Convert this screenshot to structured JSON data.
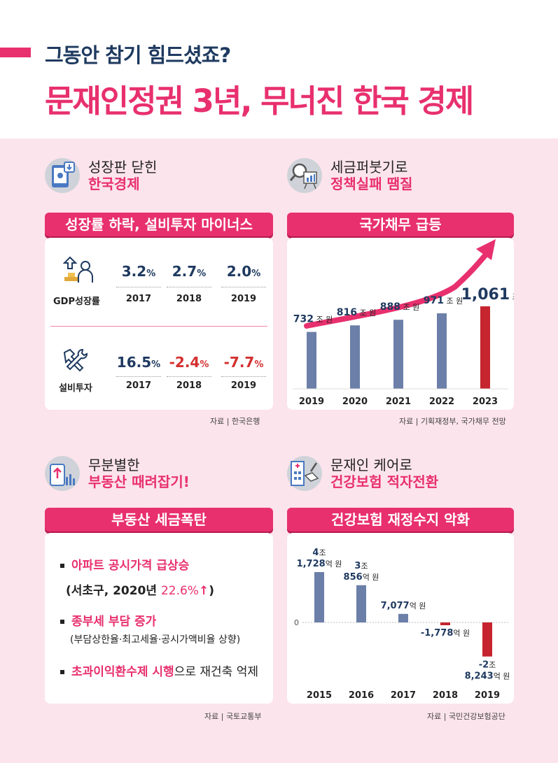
{
  "header": {
    "subtitle": "그동안 참기 힘드셨죠?",
    "title": "문재인정권 3년, 무너진 한국 경제"
  },
  "sections": [
    {
      "line1": "성장판 닫힌",
      "line2": "한국경제",
      "banner": "성장률 하락, 설비투자 마이너스",
      "source": "자료 | 한국은행"
    },
    {
      "line1": "세금퍼붓기로",
      "line2": "정책실패 땜질",
      "banner": "국가채무 급등",
      "source": "자료 | 기획재정부, 국가채무 전망"
    },
    {
      "line1": "무분별한",
      "line2": "부동산 때려잡기!",
      "banner": "부동산 세금폭탄",
      "source": "자료 | 국토교통부"
    },
    {
      "line1": "문재인 케어로",
      "line2": "건강보험 적자전환",
      "banner": "건강보험 재정수지 악화",
      "source": "자료 | 국민건강보험공단"
    }
  ],
  "growth": {
    "gdp_label": "GDP성장률",
    "invest_label": "설비투자",
    "unit": "%",
    "gdp": [
      {
        "year": "2017",
        "value": "3.2"
      },
      {
        "year": "2018",
        "value": "2.7"
      },
      {
        "year": "2019",
        "value": "2.0"
      }
    ],
    "invest": [
      {
        "year": "2017",
        "value": "16.5"
      },
      {
        "year": "2018",
        "value": "-2.4"
      },
      {
        "year": "2019",
        "value": "-7.7"
      }
    ]
  },
  "realestate": {
    "b1": "아파트 공시가격 급상승",
    "b1_sub_pre": "(서초구, 2020년 ",
    "b1_sub_val": "22.6%",
    "b1_sub_arrow": "↑",
    "b1_sub_post": ")",
    "b2": "종부세 부담 증가",
    "b2_sub": "(부담상한율·최고세율·공시가액비율 상향)",
    "b3_bold": "초과이익환수제 시행",
    "b3_rest": "으로 재건축 억제"
  },
  "chart_data": [
    {
      "type": "bar",
      "categories": [
        "2019",
        "2020",
        "2021",
        "2022",
        "2023"
      ],
      "values": [
        732,
        816,
        888,
        971,
        1061
      ],
      "labels": [
        "732",
        "816",
        "888",
        "971",
        "1,061"
      ],
      "unit_label": "조 원",
      "colors": [
        "#6b7fa8",
        "#6b7fa8",
        "#6b7fa8",
        "#6b7fa8",
        "#c6242e"
      ]
    },
    {
      "type": "bar",
      "categories": [
        "2015",
        "2016",
        "2017",
        "2018",
        "2019"
      ],
      "values": [
        41728,
        30856,
        7077,
        -1778,
        -28243
      ],
      "labels": [
        {
          "lines": [
            {
              "num": "4",
              "unit": "조"
            },
            {
              "num": "1,728",
              "unit": "억 원"
            }
          ]
        },
        {
          "lines": [
            {
              "num": "3",
              "unit": "조"
            },
            {
              "num": "856",
              "unit": "억 원"
            }
          ]
        },
        {
          "lines": [
            {
              "num": "7,077",
              "unit": "억 원"
            }
          ]
        },
        {
          "lines": [
            {
              "num": "-1,778",
              "unit": "억 원"
            }
          ]
        },
        {
          "lines": [
            {
              "num": "-2",
              "unit": "조"
            },
            {
              "num": "8,243",
              "unit": "억 원"
            }
          ]
        }
      ],
      "zero_label": "0",
      "colors": [
        "#6b7fa8",
        "#6b7fa8",
        "#6b7fa8",
        "#c6242e",
        "#c6242e"
      ]
    }
  ]
}
